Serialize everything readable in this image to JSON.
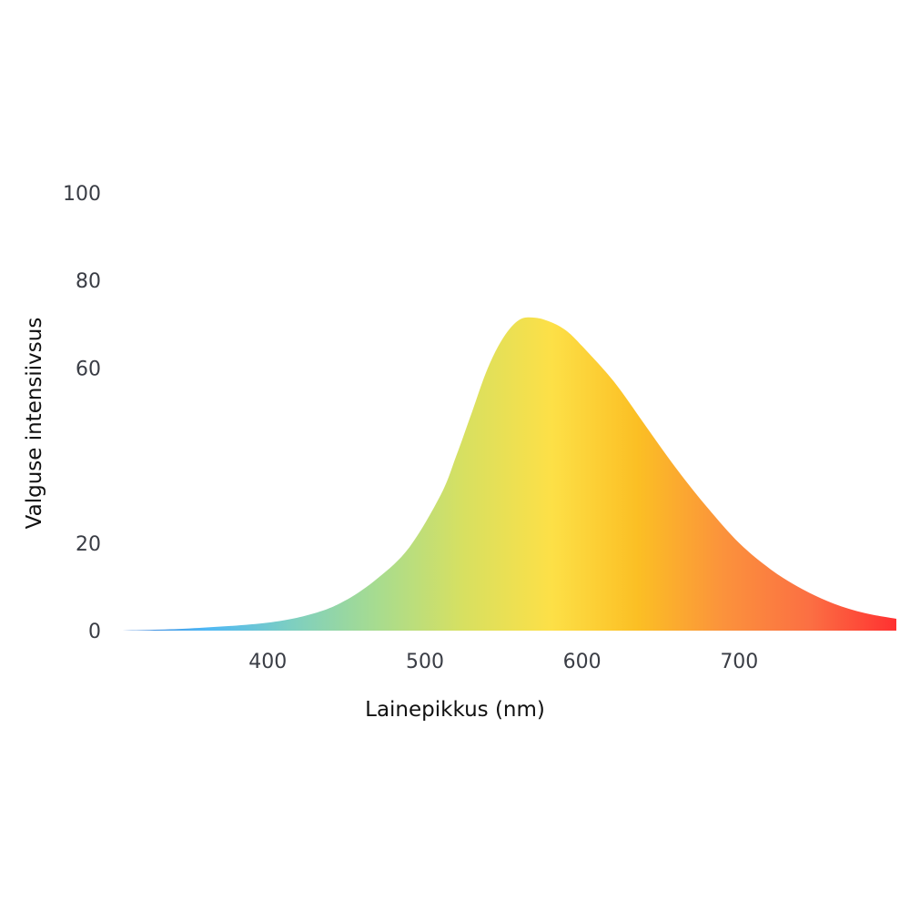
{
  "chart_data": {
    "type": "area",
    "title": "",
    "xlabel": "Lainepikkus (nm)",
    "ylabel": "Valguse intensiivsus",
    "xlim": [
      306,
      800
    ],
    "ylim": [
      0,
      100
    ],
    "x_ticks": [
      "400",
      "500",
      "600",
      "700"
    ],
    "y_ticks": [
      "0",
      "20",
      "60",
      "80",
      "100"
    ],
    "y_tick_values": [
      0,
      20,
      60,
      80,
      100
    ],
    "x_tick_values": [
      400,
      500,
      600,
      700
    ],
    "grid": false,
    "fill": "spectral wavelength gradient (blue to red)",
    "gradient_colors": [
      "#3a7bd5",
      "#4fb8f5",
      "#7ecfc0",
      "#a8dc8e",
      "#d8e060",
      "#fde047",
      "#fbbf24",
      "#fb923c",
      "#fb6f43",
      "#ff3131"
    ],
    "series": [
      {
        "x": [
          306,
          350,
          400,
          430,
          450,
          470,
          490,
          510,
          520,
          530,
          540,
          550,
          560,
          570,
          580,
          590,
          600,
          620,
          640,
          660,
          680,
          700,
          720,
          740,
          760,
          780,
          800
        ],
        "values": [
          0,
          0.5,
          1.8,
          4.0,
          7.0,
          12.0,
          19.0,
          31.0,
          40.0,
          50.0,
          60.0,
          67.0,
          71.0,
          71.5,
          70.5,
          68.5,
          65.0,
          57.0,
          47.0,
          37.0,
          28.0,
          20.0,
          14.0,
          9.5,
          6.2,
          4.0,
          2.7
        ]
      }
    ]
  }
}
